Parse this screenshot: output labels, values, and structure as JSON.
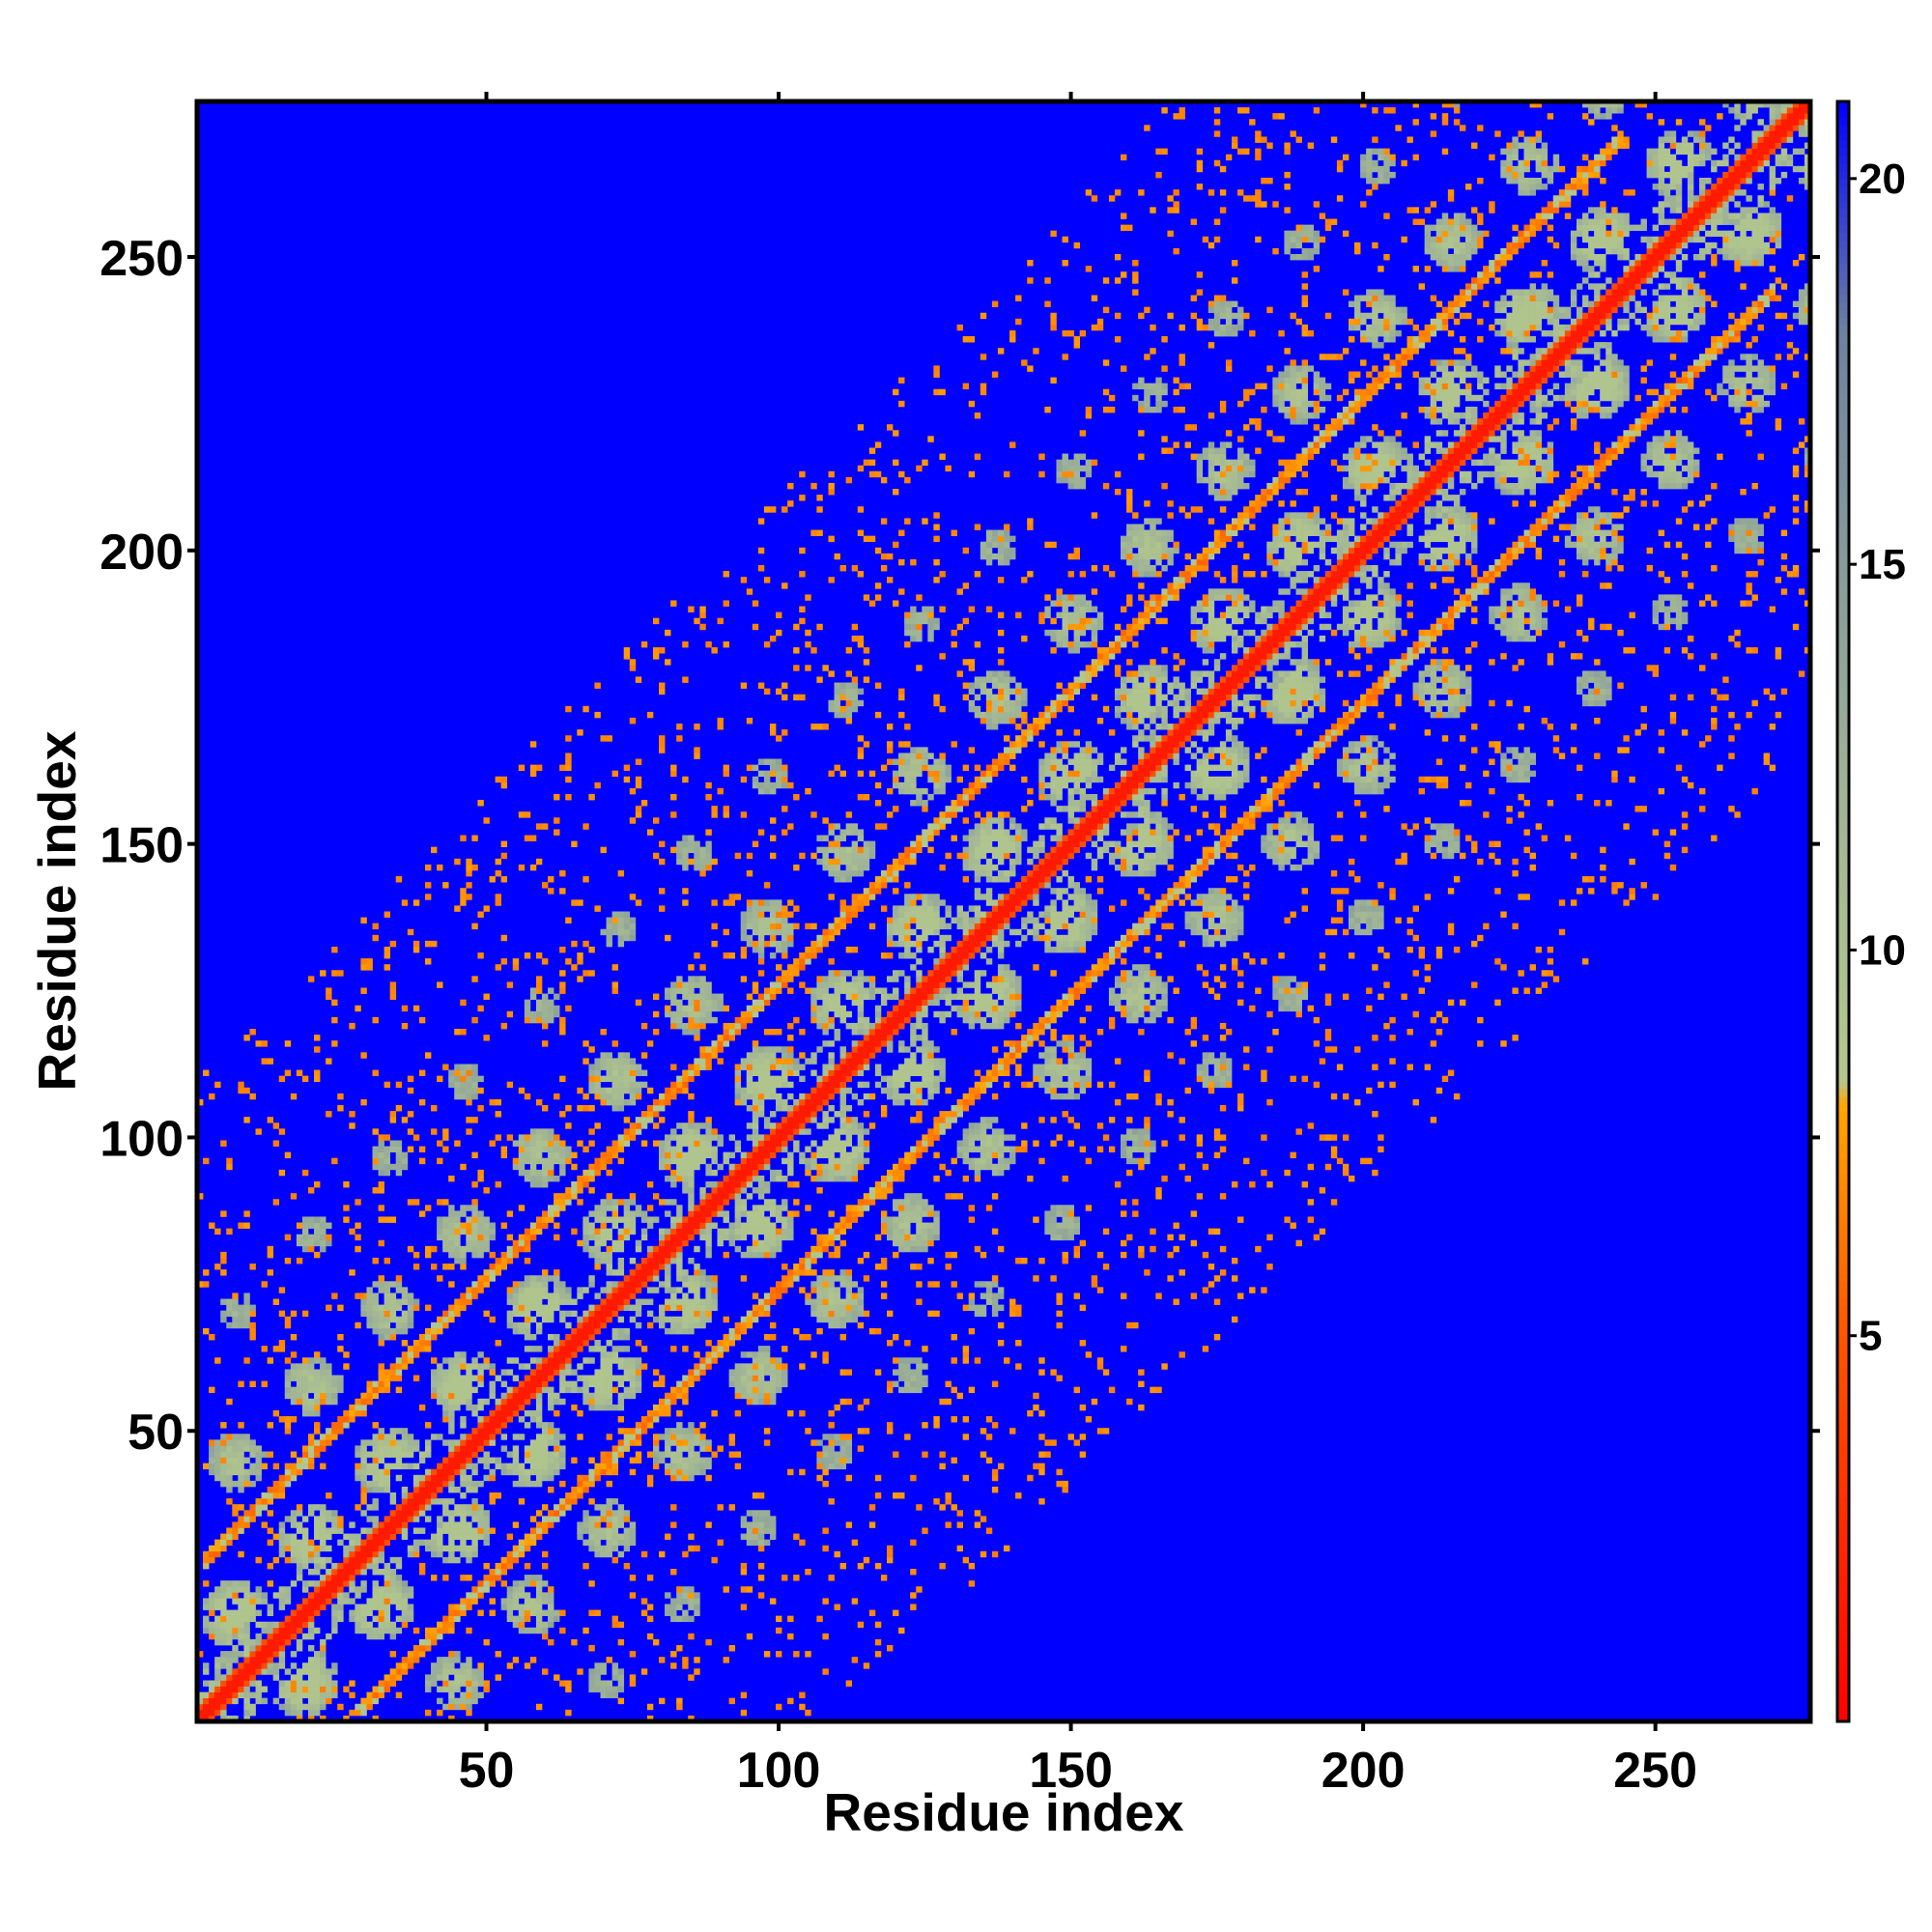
{
  "chart_data": {
    "type": "heatmap",
    "title": "",
    "xlabel": "Residue index",
    "ylabel": "Residue index",
    "n_residues": 276,
    "xlim": [
      1,
      276
    ],
    "ylim": [
      1,
      276
    ],
    "x_ticks": [
      50,
      100,
      150,
      200,
      250
    ],
    "y_ticks": [
      50,
      100,
      150,
      200,
      250
    ],
    "x_tick_labels": [
      "50",
      "100",
      "150",
      "200",
      "250"
    ],
    "y_tick_labels": [
      "50",
      "100",
      "150",
      "200",
      "250"
    ],
    "colorbar": {
      "range": [
        0,
        21
      ],
      "ticks": [
        5,
        10,
        15,
        20
      ],
      "tick_labels": [
        "5",
        "10",
        "15",
        "20"
      ],
      "stops": [
        {
          "value": 0,
          "color": "#ff0000"
        },
        {
          "value": 5,
          "color": "#ff5500"
        },
        {
          "value": 8,
          "color": "#ffa500"
        },
        {
          "value": 8.3,
          "color": "#b4c88c"
        },
        {
          "value": 12,
          "color": "#a0b496"
        },
        {
          "value": 18,
          "color": "#6e82a0"
        },
        {
          "value": 21,
          "color": "#0000ff"
        }
      ]
    },
    "background_color": "#0000ff",
    "cutoff_value": 21,
    "features": {
      "main_diagonal": {
        "description": "contacts at |i-j| small",
        "values_near": 3.8
      },
      "parallel_diagonals": [
        {
          "offset": 26,
          "from_residue": 28,
          "to_residue": 250
        },
        {
          "offset": -26,
          "from_residue": 28,
          "to_residue": 250
        }
      ],
      "lattice_bands": {
        "spacing_residues": 26,
        "extent_residues": 110
      }
    },
    "grid": false,
    "legend": "none"
  }
}
